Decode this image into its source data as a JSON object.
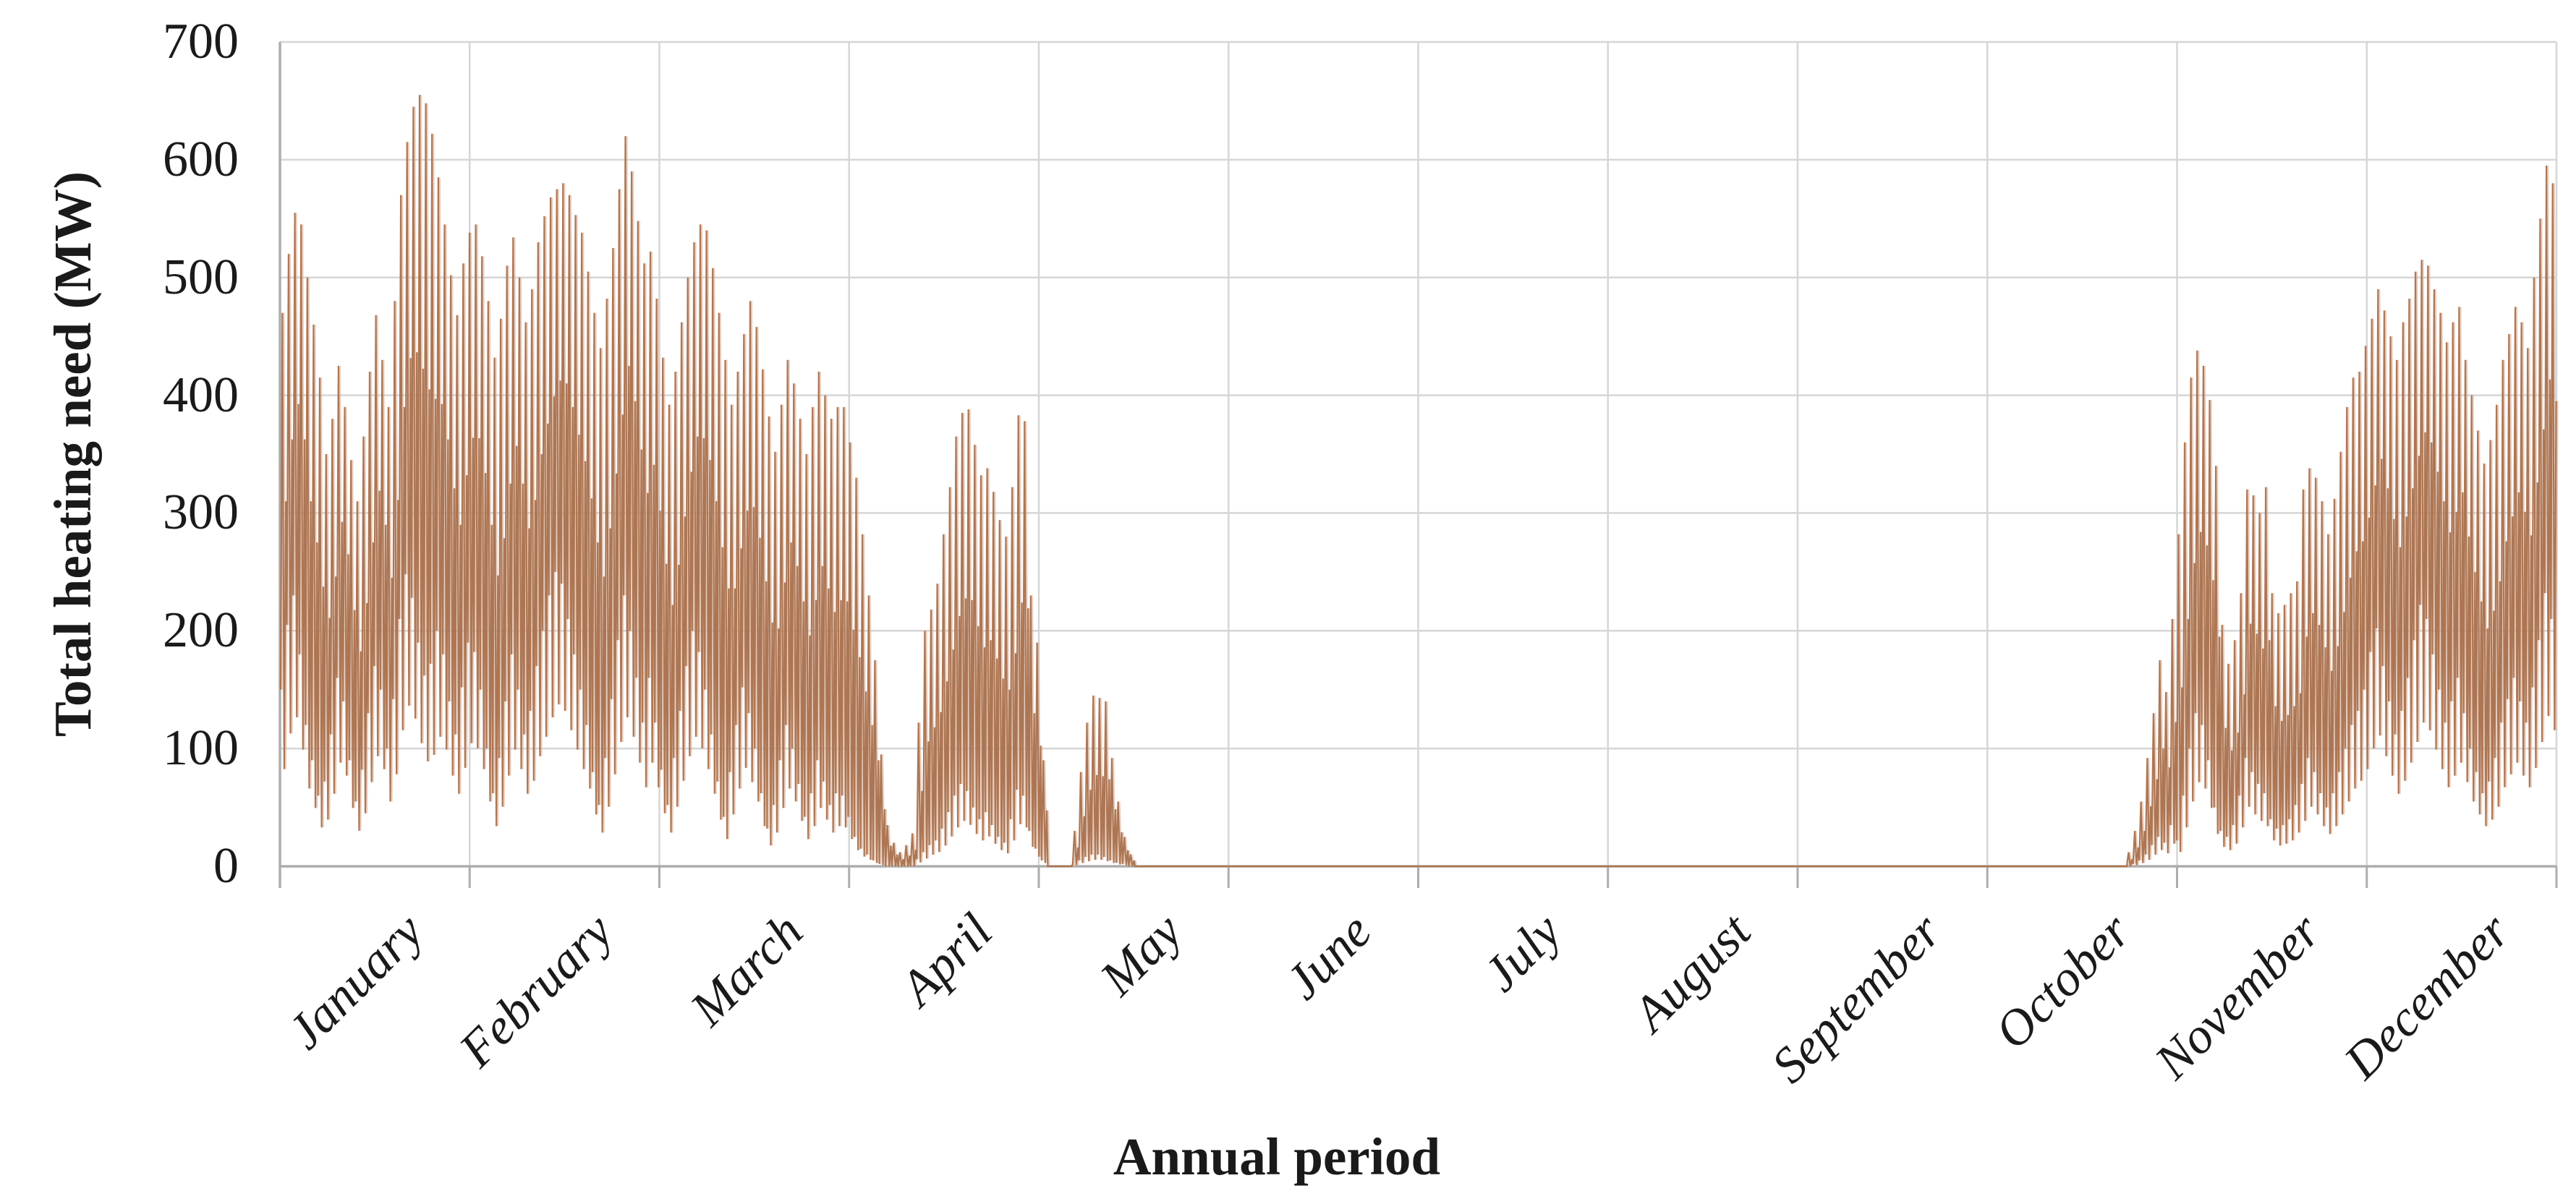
{
  "chart_data": {
    "type": "line",
    "title": "",
    "xlabel": "Annual period",
    "ylabel": "Total heating need (MW)",
    "ylim": [
      0,
      700
    ],
    "y_ticks": [
      0,
      100,
      200,
      300,
      400,
      500,
      600,
      700
    ],
    "x_categories": [
      "January",
      "February",
      "March",
      "April",
      "May",
      "June",
      "July",
      "August",
      "September",
      "October",
      "November",
      "December"
    ],
    "month_day_counts": [
      31,
      28,
      31,
      30,
      31,
      30,
      31,
      31,
      30,
      31,
      30,
      31
    ],
    "grid": true,
    "legend": "none",
    "sampling_note": "hourly heating-demand series summarized as daily peak and daily low envelope; summer (late May - late October) is zero",
    "series": [
      {
        "name": "Total heating need",
        "daily_peaks": [
          470,
          520,
          555,
          545,
          500,
          460,
          415,
          350,
          380,
          425,
          390,
          345,
          310,
          365,
          420,
          468,
          430,
          390,
          480,
          570,
          615,
          645,
          655,
          648,
          622,
          585,
          545,
          502,
          468,
          512,
          538,
          545,
          518,
          480,
          432,
          465,
          510,
          534,
          500,
          462,
          490,
          530,
          552,
          568,
          575,
          580,
          570,
          553,
          538,
          505,
          470,
          440,
          482,
          525,
          575,
          620,
          590,
          548,
          512,
          522,
          482,
          432,
          392,
          420,
          462,
          500,
          530,
          545,
          540,
          508,
          470,
          430,
          392,
          420,
          452,
          480,
          458,
          422,
          382,
          352,
          392,
          430,
          410,
          380,
          350,
          390,
          420,
          400,
          380,
          390,
          390,
          360,
          330,
          282,
          230,
          175,
          95,
          35,
          20,
          12,
          18,
          28,
          122,
          200,
          218,
          240,
          282,
          322,
          365,
          385,
          388,
          358,
          332,
          338,
          318,
          294,
          280,
          322,
          383,
          378,
          230,
          190,
          90,
          0,
          0,
          0,
          0,
          30,
          80,
          122,
          145,
          143,
          140,
          92,
          55,
          25,
          10,
          0,
          0,
          0,
          0,
          0,
          0,
          0,
          0,
          0,
          0,
          0,
          0,
          0,
          0,
          0,
          0,
          0,
          0,
          0,
          0,
          0,
          0,
          0,
          0,
          0,
          0,
          0,
          0,
          0,
          0,
          0,
          0,
          0,
          0,
          0,
          0,
          0,
          0,
          0,
          0,
          0,
          0,
          0,
          0,
          0,
          0,
          0,
          0,
          0,
          0,
          0,
          0,
          0,
          0,
          0,
          0,
          0,
          0,
          0,
          0,
          0,
          0,
          0,
          0,
          0,
          0,
          0,
          0,
          0,
          0,
          0,
          0,
          0,
          0,
          0,
          0,
          0,
          0,
          0,
          0,
          0,
          0,
          0,
          0,
          0,
          0,
          0,
          0,
          0,
          0,
          0,
          0,
          0,
          0,
          0,
          0,
          0,
          0,
          0,
          0,
          0,
          0,
          0,
          0,
          0,
          0,
          0,
          0,
          0,
          0,
          0,
          0,
          0,
          0,
          0,
          0,
          0,
          0,
          0,
          0,
          0,
          0,
          0,
          0,
          0,
          0,
          0,
          0,
          0,
          0,
          0,
          0,
          0,
          0,
          0,
          0,
          0,
          0,
          0,
          0,
          0,
          0,
          0,
          0,
          0,
          0,
          0,
          0,
          0,
          0,
          0,
          0,
          0,
          0,
          0,
          0,
          0,
          0,
          0,
          12,
          30,
          55,
          92,
          130,
          175,
          148,
          210,
          282,
          360,
          415,
          438,
          425,
          396,
          340,
          205,
          172,
          192,
          232,
          320,
          315,
          300,
          322,
          232,
          215,
          222,
          232,
          242,
          320,
          338,
          330,
          310,
          282,
          312,
          352,
          390,
          415,
          420,
          442,
          465,
          490,
          472,
          450,
          430,
          462,
          482,
          505,
          515,
          510,
          490,
          470,
          445,
          462,
          475,
          430,
          400,
          370,
          342,
          362,
          392,
          430,
          452,
          475,
          462,
          440,
          500,
          550,
          595,
          580
        ],
        "daily_lows": [
          150,
          205,
          230,
          180,
          120,
          90,
          60,
          72,
          112,
          160,
          140,
          90,
          55,
          82,
          130,
          170,
          150,
          100,
          142,
          210,
          248,
          228,
          190,
          162,
          172,
          200,
          180,
          140,
          112,
          152,
          190,
          182,
          150,
          100,
          62,
          92,
          140,
          180,
          150,
          112,
          132,
          170,
          200,
          230,
          250,
          240,
          210,
          180,
          150,
          120,
          80,
          52,
          92,
          142,
          192,
          230,
          200,
          160,
          122,
          160,
          122,
          82,
          52,
          92,
          132,
          170,
          200,
          182,
          150,
          112,
          72,
          42,
          80,
          120,
          152,
          130,
          100,
          62,
          32,
          52,
          90,
          120,
          100,
          70,
          42,
          62,
          90,
          72,
          52,
          62,
          60,
          42,
          25,
          15,
          10,
          5,
          2,
          0,
          0,
          0,
          0,
          0,
          6,
          12,
          18,
          22,
          32,
          46,
          60,
          70,
          64,
          50,
          40,
          46,
          35,
          25,
          20,
          40,
          65,
          60,
          30,
          15,
          5,
          0,
          0,
          0,
          0,
          2,
          5,
          8,
          10,
          10,
          8,
          5,
          3,
          2,
          0,
          0,
          0,
          0,
          0,
          0,
          0,
          0,
          0,
          0,
          0,
          0,
          0,
          0,
          0,
          0,
          0,
          0,
          0,
          0,
          0,
          0,
          0,
          0,
          0,
          0,
          0,
          0,
          0,
          0,
          0,
          0,
          0,
          0,
          0,
          0,
          0,
          0,
          0,
          0,
          0,
          0,
          0,
          0,
          0,
          0,
          0,
          0,
          0,
          0,
          0,
          0,
          0,
          0,
          0,
          0,
          0,
          0,
          0,
          0,
          0,
          0,
          0,
          0,
          0,
          0,
          0,
          0,
          0,
          0,
          0,
          0,
          0,
          0,
          0,
          0,
          0,
          0,
          0,
          0,
          0,
          0,
          0,
          0,
          0,
          0,
          0,
          0,
          0,
          0,
          0,
          0,
          0,
          0,
          0,
          0,
          0,
          0,
          0,
          0,
          0,
          0,
          0,
          0,
          0,
          0,
          0,
          0,
          0,
          0,
          0,
          0,
          0,
          0,
          0,
          0,
          0,
          0,
          0,
          0,
          0,
          0,
          0,
          0,
          0,
          0,
          0,
          0,
          0,
          0,
          0,
          0,
          0,
          0,
          0,
          0,
          0,
          0,
          0,
          0,
          0,
          0,
          0,
          0,
          0,
          0,
          0,
          0,
          0,
          0,
          0,
          0,
          0,
          0,
          0,
          0,
          0,
          0,
          0,
          0,
          0,
          2,
          5,
          10,
          18,
          25,
          20,
          35,
          22,
          60,
          100,
          130,
          120,
          90,
          50,
          30,
          25,
          35,
          60,
          92,
          80,
          70,
          62,
          40,
          32,
          35,
          40,
          52,
          70,
          92,
          80,
          62,
          50,
          62,
          80,
          100,
          120,
          132,
          150,
          182,
          202,
          170,
          140,
          112,
          132,
          160,
          192,
          222,
          210,
          180,
          150,
          122,
          140,
          160,
          130,
          100,
          80,
          62,
          72,
          92,
          122,
          142,
          160,
          140,
          122,
          152,
          192,
          232,
          210
        ]
      }
    ],
    "colors": {
      "series": "#A9714E",
      "series_light": "#DDB196",
      "gridline": "#D6D6D6",
      "axis": "#ADADAD",
      "text": "#1A1A1A"
    },
    "layout": {
      "plot_left": 387,
      "plot_right": 3534,
      "plot_top": 58,
      "plot_bottom": 1198,
      "tick_length": 30
    }
  }
}
